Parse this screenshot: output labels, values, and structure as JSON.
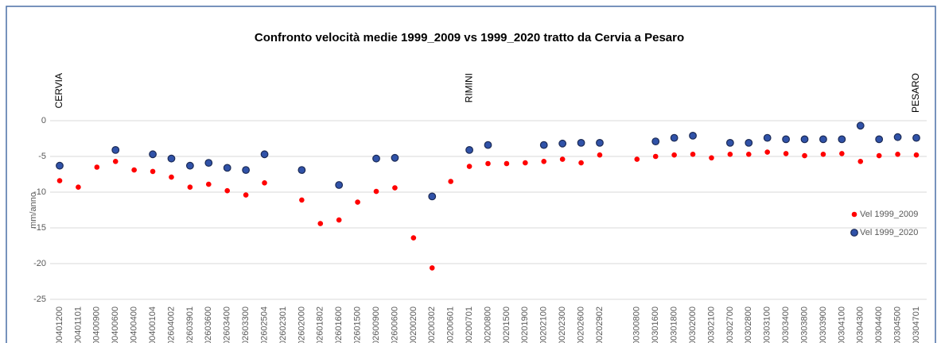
{
  "chart_data": {
    "type": "scatter",
    "title": "Confronto velocità medie 1999_2009 vs 1999_2020 tratto da Cervia a Pesaro",
    "y_label": "mm/anno",
    "categories": [
      "00401200",
      "00401101",
      "00400900",
      "00400600",
      "00400400",
      "00400104",
      "02604002",
      "02603901",
      "02603600",
      "02603400",
      "02603300",
      "02602504",
      "02602301",
      "02602000",
      "02601802",
      "02601600",
      "02601500",
      "02600900",
      "02600600",
      "00200200",
      "00200302",
      "00200601",
      "00200701",
      "00200800",
      "00201500",
      "00201900",
      "00202100",
      "00202300",
      "00202600",
      "00202902",
      null,
      "00300800",
      "00301600",
      "00301800",
      "00302000",
      "00302100",
      "00302700",
      "00302800",
      "00303100",
      "00303400",
      "00303800",
      "00303900",
      "00304100",
      "00304300",
      "00304400",
      "00304500",
      "00304701"
    ],
    "series": [
      {
        "name": "Vel 1999_2009",
        "color": "#ff0000",
        "values": [
          -8.4,
          -9.3,
          -6.5,
          -5.7,
          -6.9,
          -7.1,
          -7.9,
          -9.3,
          -8.9,
          -9.8,
          -10.4,
          -8.7,
          null,
          -11.1,
          -14.4,
          -13.9,
          -11.4,
          -9.9,
          -9.4,
          -16.4,
          -20.6,
          -8.5,
          -6.4,
          -6.0,
          -6.0,
          -5.9,
          -5.7,
          -5.4,
          -5.9,
          -4.8,
          null,
          -5.4,
          -5.0,
          -4.8,
          -4.7,
          -5.2,
          -4.7,
          -4.7,
          -4.4,
          -4.6,
          -4.9,
          -4.7,
          -4.6,
          -5.7,
          -4.9,
          -4.7,
          -4.8
        ]
      },
      {
        "name": "Vel 1999_2020",
        "color": "#3052a8",
        "values": [
          -6.3,
          null,
          null,
          -4.1,
          null,
          -4.7,
          -5.3,
          -6.3,
          -5.9,
          -6.6,
          -6.9,
          -4.7,
          null,
          -6.9,
          null,
          -9.0,
          null,
          -5.3,
          -5.2,
          null,
          -10.6,
          null,
          -4.1,
          -3.4,
          null,
          null,
          -3.4,
          -3.2,
          -3.1,
          -3.1,
          null,
          null,
          -2.9,
          -2.4,
          -2.1,
          null,
          -3.1,
          -3.1,
          -2.4,
          -2.6,
          -2.6,
          -2.6,
          -2.6,
          -0.7,
          -2.6,
          -2.3,
          -2.4
        ]
      }
    ],
    "annotations": [
      {
        "text": "CERVIA",
        "x": "00401200"
      },
      {
        "text": "RIMINI",
        "x": "00200701"
      },
      {
        "text": "PESARO",
        "x": "00304701"
      }
    ],
    "ylim": [
      -25,
      0
    ],
    "yticks": [
      0,
      -5,
      -10,
      -15,
      -20,
      -25
    ],
    "grid": true,
    "legend": "right"
  }
}
